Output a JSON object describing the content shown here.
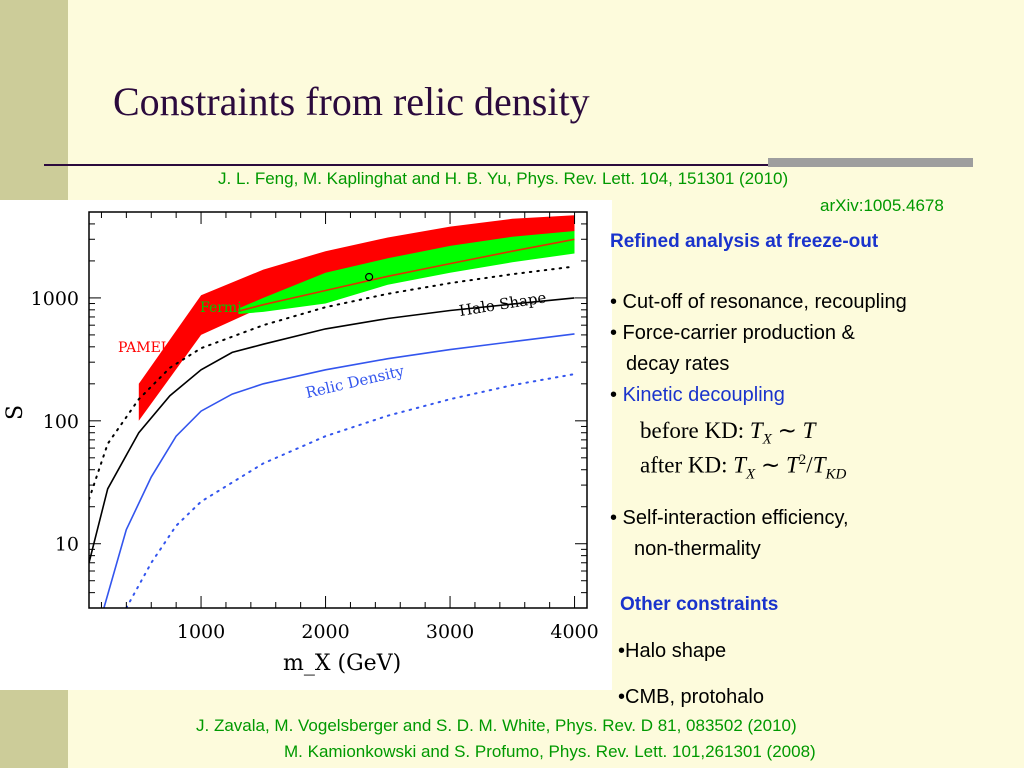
{
  "slide": {
    "title": "Constraints from relic density",
    "reference_top_line1": "J. L. Feng, M. Kaplinghat and H. B. Yu, Phys. Rev. Lett. 104, 151301 (2010)",
    "reference_top_line2": "arXiv:1005.4678",
    "reference_bottom_line1": "J. Zavala, M. Vogelsberger and S. D. M. White, Phys. Rev. D 81, 083502 (2010)",
    "reference_bottom_line2": "M. Kamionkowski and S. Profumo, Phys. Rev. Lett. 101,261301 (2008)"
  },
  "right_panel": {
    "heading": "Refined analysis at freeze-out",
    "bullet1": "• Cut-off of resonance, recoupling",
    "bullet2_line1": "• Force-carrier production &",
    "bullet2_line2": "decay rates",
    "bullet3_marker": "•",
    "bullet3_text": "Kinetic decoupling",
    "math_before_label": "before KD:",
    "math_after_label": "after KD:",
    "bullet4_line1": "• Self-interaction efficiency,",
    "bullet4_line2": "non-thermality",
    "other_heading": "Other constraints",
    "other_item1": "•Halo shape",
    "other_item2": "•CMB, protohalo"
  },
  "colors": {
    "title": "#2b0a3d",
    "reference": "#009900",
    "heading_blue": "#1a33cc",
    "sidebar": "#cccc99",
    "background": "#fdfbdc",
    "pamela_red": "#ff0000",
    "fermi_green": "#00ff00",
    "relic_blue": "#3355ee"
  },
  "chart_data": {
    "type": "line",
    "xlabel": "m_X (GeV)",
    "ylabel": "S",
    "xlim": [
      100,
      4100
    ],
    "ylim": [
      3,
      5000
    ],
    "y_scale": "log",
    "x_ticks": [
      1000,
      2000,
      3000,
      4000
    ],
    "y_ticks": [
      10,
      100,
      1000
    ],
    "tick_labels_x": [
      "1000",
      "2000",
      "3000",
      "4000"
    ],
    "tick_labels_y": [
      "10",
      "100",
      "1000"
    ],
    "grid": false,
    "annotations": [
      "Fermi",
      "PAMELA",
      "Halo Shape",
      "Relic Density"
    ],
    "marker_point": {
      "x": 2350,
      "y": 1480
    },
    "series": [
      {
        "name": "PAMELA",
        "kind": "band",
        "x": [
          500,
          1000,
          1500,
          2000,
          2500,
          3000,
          3500,
          4000
        ],
        "low": [
          100,
          500,
          850,
          1250,
          1700,
          2150,
          2600,
          3050
        ],
        "high": [
          200,
          1050,
          1700,
          2400,
          3100,
          3800,
          4400,
          4700
        ]
      },
      {
        "name": "Fermi",
        "kind": "band",
        "x": [
          1300,
          1500,
          2000,
          2500,
          3000,
          3500,
          4000
        ],
        "low": [
          740,
          770,
          900,
          1280,
          1600,
          1950,
          2300
        ],
        "high": [
          820,
          1000,
          1600,
          2100,
          2650,
          3150,
          3500
        ]
      },
      {
        "name": "",
        "kind": "line",
        "style": "solid",
        "color": "#dd3300",
        "x": [
          1300,
          1500,
          2000,
          2500,
          3000,
          3500,
          4000
        ],
        "y": [
          780,
          880,
          1150,
          1500,
          1900,
          2400,
          3000
        ]
      },
      {
        "name": "Halo Shape",
        "kind": "line",
        "style": "solid",
        "color": "#000000",
        "x": [
          100,
          250,
          500,
          750,
          1000,
          1250,
          1500,
          2000,
          2500,
          3000,
          3500,
          4000
        ],
        "y": [
          7,
          28,
          80,
          160,
          260,
          360,
          420,
          560,
          680,
          790,
          890,
          1000
        ]
      },
      {
        "name": "",
        "kind": "line",
        "style": "dotted",
        "color": "#000000",
        "x": [
          100,
          250,
          500,
          750,
          1000,
          1500,
          2000,
          2500,
          3000,
          3500,
          4000
        ],
        "y": [
          23,
          65,
          150,
          270,
          390,
          600,
          840,
          1080,
          1320,
          1560,
          1800
        ]
      },
      {
        "name": "Relic Density",
        "kind": "line",
        "style": "solid",
        "color": "#3355ee",
        "x": [
          220,
          400,
          600,
          800,
          1000,
          1250,
          1500,
          2000,
          2500,
          3000,
          3500,
          4000
        ],
        "y": [
          3,
          13,
          35,
          75,
          120,
          165,
          200,
          260,
          320,
          380,
          440,
          510
        ]
      },
      {
        "name": "",
        "kind": "line",
        "style": "dotted",
        "color": "#3355ee",
        "x": [
          400,
          600,
          800,
          1000,
          1500,
          2000,
          2500,
          3000,
          3500,
          4000
        ],
        "y": [
          3,
          7,
          14,
          22,
          45,
          75,
          110,
          150,
          195,
          240
        ]
      }
    ]
  }
}
